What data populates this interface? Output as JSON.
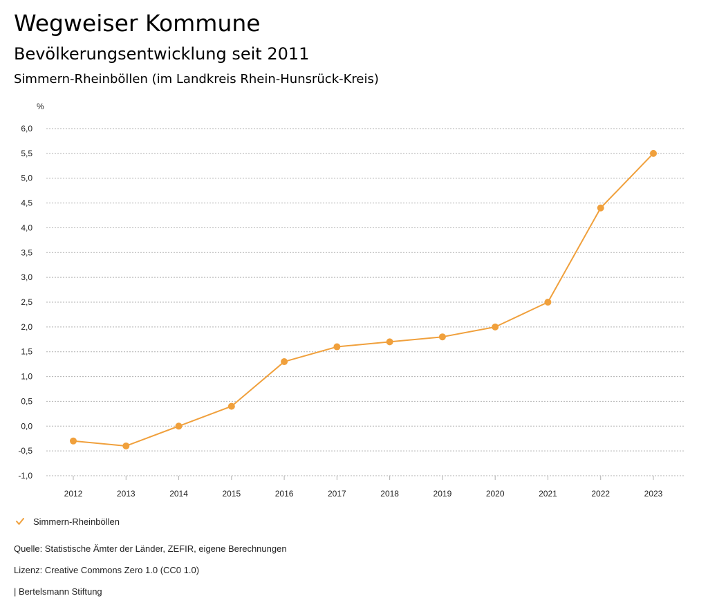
{
  "header": {
    "title": "Wegweiser Kommune",
    "subtitle": "Bevölkerungsentwicklung seit 2011",
    "region": "Simmern-Rheinböllen (im Landkreis Rhein-Hunsrück-Kreis)"
  },
  "colors": {
    "series": "#F0A03C",
    "grid": "#b0b0b0"
  },
  "chart_data": {
    "type": "line",
    "title": "Bevölkerungsentwicklung seit 2011",
    "xlabel": "",
    "ylabel": "%",
    "ylim": [
      -1.0,
      6.0
    ],
    "y_ticks": [
      "6,0",
      "5,5",
      "5,0",
      "4,5",
      "4,0",
      "3,5",
      "3,0",
      "2,5",
      "2,0",
      "1,5",
      "1,0",
      "0,5",
      "0,0",
      "-0,5",
      "-1,0"
    ],
    "y_tick_values": [
      6.0,
      5.5,
      5.0,
      4.5,
      4.0,
      3.5,
      3.0,
      2.5,
      2.0,
      1.5,
      1.0,
      0.5,
      0.0,
      -0.5,
      -1.0
    ],
    "grid": true,
    "categories": [
      "2012",
      "2013",
      "2014",
      "2015",
      "2016",
      "2017",
      "2018",
      "2019",
      "2020",
      "2021",
      "2022",
      "2023"
    ],
    "series": [
      {
        "name": "Simmern-Rheinböllen",
        "values": [
          -0.3,
          -0.4,
          0.0,
          0.4,
          1.3,
          1.6,
          1.7,
          1.8,
          2.0,
          2.5,
          4.4,
          5.5
        ]
      }
    ],
    "legend_position": "bottom-left"
  },
  "legend": {
    "label": "Simmern-Rheinböllen"
  },
  "footer": {
    "source": "Quelle: Statistische Ämter der Länder, ZEFIR, eigene Berechnungen",
    "license": "Lizenz: Creative Commons Zero 1.0 (CC0 1.0)",
    "organization": "| Bertelsmann Stiftung"
  }
}
